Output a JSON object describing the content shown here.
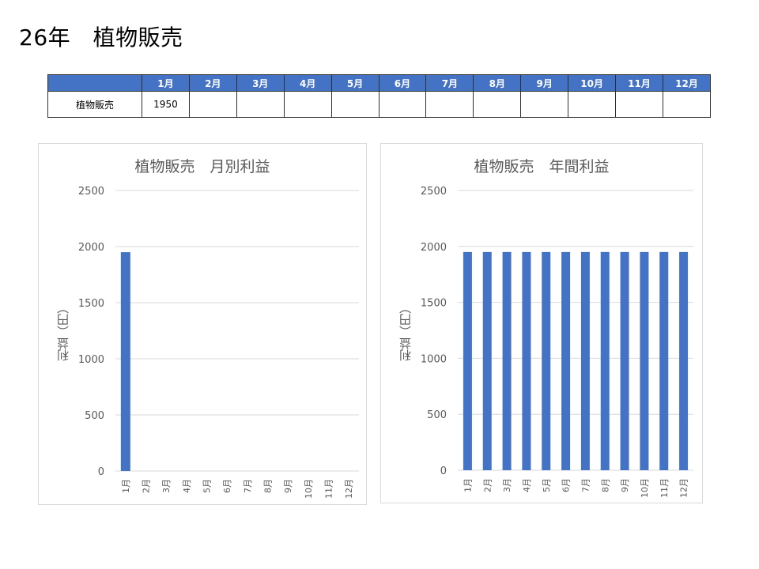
{
  "page": {
    "title": "26年　植物販売"
  },
  "table": {
    "header_blank": "",
    "months": [
      "1月",
      "2月",
      "3月",
      "4月",
      "5月",
      "6月",
      "7月",
      "8月",
      "9月",
      "10月",
      "11月",
      "12月"
    ],
    "row_label": "植物販売",
    "row_values": [
      "1950",
      "",
      "",
      "",
      "",
      "",
      "",
      "",
      "",
      "",
      "",
      ""
    ]
  },
  "colors": {
    "bar": "#4472c4",
    "header": "#4472c4",
    "grid": "#d9d9d9",
    "text": "#595959"
  },
  "chart_data": [
    {
      "type": "bar",
      "title": "植物販売　月別利益",
      "xlabel": "",
      "ylabel": "利益（円）",
      "categories": [
        "1月",
        "2月",
        "3月",
        "4月",
        "5月",
        "6月",
        "7月",
        "8月",
        "9月",
        "10月",
        "11月",
        "12月"
      ],
      "values": [
        1950,
        null,
        null,
        null,
        null,
        null,
        null,
        null,
        null,
        null,
        null,
        null
      ],
      "ylim": [
        0,
        2500
      ],
      "yticks": [
        0,
        500,
        1000,
        1500,
        2000,
        2500
      ],
      "grid": true,
      "legend": "none"
    },
    {
      "type": "bar",
      "title": "植物販売　年間利益",
      "xlabel": "",
      "ylabel": "利益（円）",
      "categories": [
        "1月",
        "2月",
        "3月",
        "4月",
        "5月",
        "6月",
        "7月",
        "8月",
        "9月",
        "10月",
        "11月",
        "12月"
      ],
      "values": [
        1950,
        1950,
        1950,
        1950,
        1950,
        1950,
        1950,
        1950,
        1950,
        1950,
        1950,
        1950
      ],
      "ylim": [
        0,
        2500
      ],
      "yticks": [
        0,
        500,
        1000,
        1500,
        2000,
        2500
      ],
      "grid": true,
      "legend": "none"
    }
  ]
}
